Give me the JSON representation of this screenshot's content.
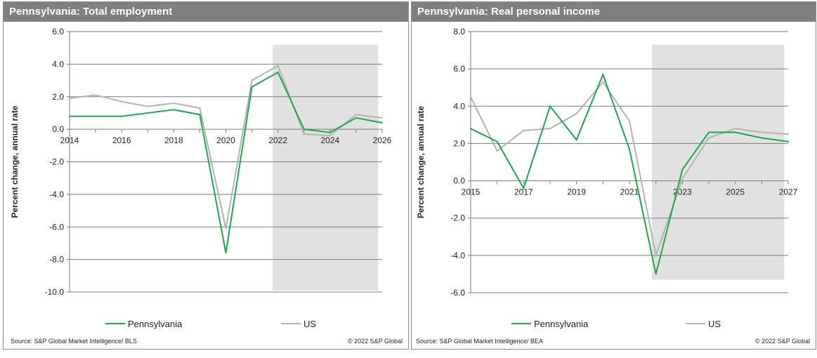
{
  "chart_data": [
    {
      "type": "line",
      "title": "Pennsylvania: Total employment",
      "ylabel": "Percent change, annual rate",
      "xlabel": "",
      "x": [
        2014,
        2015,
        2016,
        2017,
        2018,
        2019,
        2020,
        2021,
        2022,
        2023,
        2024,
        2025,
        2026
      ],
      "xticks": [
        "2014",
        "2016",
        "2018",
        "2020",
        "2022",
        "2024",
        "2026"
      ],
      "yticks": [
        "6.0",
        "4.0",
        "2.0",
        "0.0",
        "-2.0",
        "-4.0",
        "-6.0",
        "-8.0",
        "-10.0"
      ],
      "ylim": [
        -10,
        6
      ],
      "xlim": [
        2014,
        2026
      ],
      "forecast_shade": {
        "from": 2021.8,
        "to": 2025.85,
        "ymin": -9.9,
        "ymax": 5.2
      },
      "series": [
        {
          "name": "Pennsylvania",
          "color": "#1ea64f",
          "values": [
            0.8,
            0.8,
            0.8,
            1.0,
            1.2,
            0.9,
            -7.6,
            2.6,
            3.5,
            0.0,
            -0.2,
            0.7,
            0.4
          ]
        },
        {
          "name": "US",
          "color": "#b3b3b3",
          "values": [
            1.9,
            2.1,
            1.7,
            1.4,
            1.6,
            1.3,
            -6.1,
            3.0,
            3.9,
            -0.3,
            -0.4,
            0.9,
            0.7
          ]
        }
      ],
      "legend": "bottom",
      "grid": true,
      "source": "Source: S&P Global Market Intelligence/ BLS",
      "copyright": "© 2022 S&P Global"
    },
    {
      "type": "line",
      "title": "Pennsylvania: Real personal income",
      "ylabel": "Percent change, annual rate",
      "xlabel": "",
      "x": [
        2015,
        2016,
        2017,
        2018,
        2019,
        2020,
        2021,
        2022,
        2023,
        2024,
        2025,
        2026,
        2027
      ],
      "xticks": [
        "2015",
        "2017",
        "2019",
        "2021",
        "2023",
        "2025",
        "2027"
      ],
      "yticks": [
        "8.0",
        "6.0",
        "4.0",
        "2.0",
        "0.0",
        "-2.0",
        "-4.0",
        "-6.0"
      ],
      "ylim": [
        -6,
        8
      ],
      "xlim": [
        2015,
        2027
      ],
      "forecast_shade": {
        "from": 2021.85,
        "to": 2026.85,
        "ymin": -5.3,
        "ymax": 7.3
      },
      "series": [
        {
          "name": "Pennsylvania",
          "color": "#1ea64f",
          "values": [
            2.8,
            2.1,
            -0.4,
            4.0,
            2.2,
            5.7,
            1.7,
            -5.0,
            0.6,
            2.6,
            2.6,
            2.3,
            2.1
          ]
        },
        {
          "name": "US",
          "color": "#b3b3b3",
          "values": [
            4.5,
            1.6,
            2.7,
            2.8,
            3.6,
            5.3,
            3.2,
            -4.0,
            0.1,
            2.3,
            2.8,
            2.6,
            2.5
          ]
        }
      ],
      "legend": "bottom",
      "grid": true,
      "source": "Source: S&P Global Market Intelligence/ BEA",
      "copyright": "© 2022 S&P Global"
    }
  ]
}
